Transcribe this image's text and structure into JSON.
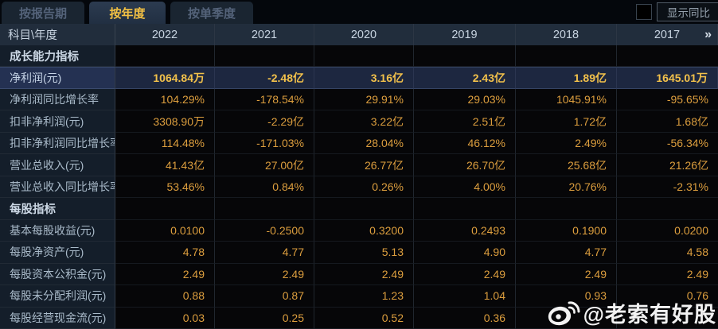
{
  "tabs": [
    {
      "label": "按报告期",
      "selected": false
    },
    {
      "label": "按年度",
      "selected": true
    },
    {
      "label": "按单季度",
      "selected": false
    }
  ],
  "controls": {
    "show_yoy_label": "显示同比",
    "checkbox_checked": false
  },
  "table": {
    "corner_header": "科目\\年度",
    "year_columns": [
      "2022",
      "2021",
      "2020",
      "2019",
      "2018",
      "2017"
    ],
    "more_columns_icon": "»",
    "rows": [
      {
        "type": "section",
        "label": "成长能力指标",
        "values": [
          "",
          "",
          "",
          "",
          "",
          ""
        ]
      },
      {
        "type": "highlight",
        "label": "净利润(元)",
        "values": [
          "1064.84万",
          "-2.48亿",
          "3.16亿",
          "2.43亿",
          "1.89亿",
          "1645.01万"
        ]
      },
      {
        "type": "data",
        "label": "净利润同比增长率",
        "values": [
          "104.29%",
          "-178.54%",
          "29.91%",
          "29.03%",
          "1045.91%",
          "-95.65%"
        ]
      },
      {
        "type": "data",
        "label": "扣非净利润(元)",
        "values": [
          "3308.90万",
          "-2.29亿",
          "3.22亿",
          "2.51亿",
          "1.72亿",
          "1.68亿"
        ]
      },
      {
        "type": "data",
        "label": "扣非净利润同比增长率",
        "values": [
          "114.48%",
          "-171.03%",
          "28.04%",
          "46.12%",
          "2.49%",
          "-56.34%"
        ]
      },
      {
        "type": "data",
        "label": "营业总收入(元)",
        "values": [
          "41.43亿",
          "27.00亿",
          "26.77亿",
          "26.70亿",
          "25.68亿",
          "21.26亿"
        ]
      },
      {
        "type": "data",
        "label": "营业总收入同比增长率",
        "values": [
          "53.46%",
          "0.84%",
          "0.26%",
          "4.00%",
          "20.76%",
          "-2.31%"
        ]
      },
      {
        "type": "section",
        "label": "每股指标",
        "values": [
          "",
          "",
          "",
          "",
          "",
          ""
        ]
      },
      {
        "type": "data",
        "label": "基本每股收益(元)",
        "values": [
          "0.0100",
          "-0.2500",
          "0.3200",
          "0.2493",
          "0.1900",
          "0.0200"
        ]
      },
      {
        "type": "data",
        "label": "每股净资产(元)",
        "values": [
          "4.78",
          "4.77",
          "5.13",
          "4.90",
          "4.77",
          "4.58"
        ]
      },
      {
        "type": "data",
        "label": "每股资本公积金(元)",
        "values": [
          "2.49",
          "2.49",
          "2.49",
          "2.49",
          "2.49",
          "2.49"
        ]
      },
      {
        "type": "data",
        "label": "每股未分配利润(元)",
        "values": [
          "0.88",
          "0.87",
          "1.23",
          "1.04",
          "0.93",
          "0.76"
        ]
      },
      {
        "type": "data",
        "label": "每股经营现金流(元)",
        "values": [
          "0.03",
          "0.25",
          "0.52",
          "0.36",
          "",
          ""
        ]
      }
    ]
  },
  "watermark": {
    "handle": "@老索有好股"
  },
  "colors": {
    "value_gold": "#dc9e3e",
    "highlight_gold": "#f2c14b",
    "tab_selected_text": "#f3c143",
    "header_bg": "#212d3c",
    "label_cell_bg": "#141e2a",
    "highlight_row_bg": "#1d2740"
  }
}
